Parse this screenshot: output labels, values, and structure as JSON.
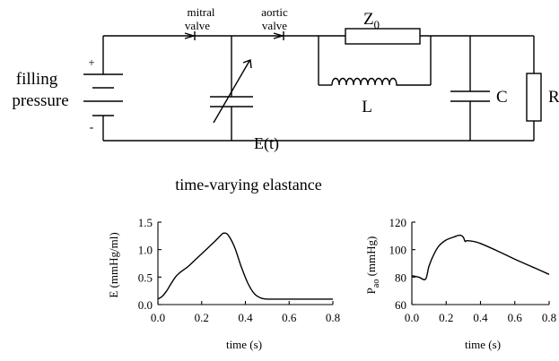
{
  "circuit": {
    "source_label_line1": "filling",
    "source_label_line2": "pressure",
    "plus_sign": "+",
    "minus_sign": "-",
    "mitral_line1": "mitral",
    "mitral_line2": "valve",
    "aortic_line1": "aortic",
    "aortic_line2": "valve",
    "elastance_label": "E(t)",
    "z0_main": "Z",
    "z0_sub": "0",
    "inductor_label": "L",
    "capacitor_label": "C",
    "resistor_label": "R"
  },
  "chart_data": [
    {
      "type": "line",
      "title": "time-varying elastance",
      "xlabel": "time (s)",
      "ylabel": "E (mmHg/ml)",
      "xlim": [
        0.0,
        0.8
      ],
      "ylim": [
        0.0,
        1.5
      ],
      "xticks": [
        "0.0",
        "0.2",
        "0.4",
        "0.6",
        "0.8"
      ],
      "yticks": [
        "0.0",
        "0.5",
        "1.0",
        "1.5"
      ],
      "x": [
        0.0,
        0.02,
        0.04,
        0.06,
        0.08,
        0.1,
        0.14,
        0.18,
        0.22,
        0.26,
        0.29,
        0.3,
        0.32,
        0.35,
        0.38,
        0.41,
        0.44,
        0.47,
        0.5,
        0.55,
        0.6,
        0.7,
        0.8
      ],
      "y": [
        0.1,
        0.15,
        0.25,
        0.38,
        0.5,
        0.58,
        0.7,
        0.85,
        1.0,
        1.15,
        1.27,
        1.3,
        1.27,
        1.05,
        0.7,
        0.4,
        0.2,
        0.12,
        0.1,
        0.1,
        0.1,
        0.1,
        0.1
      ]
    },
    {
      "type": "line",
      "title": "",
      "xlabel": "time (s)",
      "ylabel_main": "P",
      "ylabel_sub": "ao",
      "ylabel_unit": "(mmHg)",
      "xlim": [
        0.0,
        0.8
      ],
      "ylim": [
        60,
        120
      ],
      "xticks": [
        "0.0",
        "0.2",
        "0.4",
        "0.6",
        "0.8"
      ],
      "yticks": [
        "60",
        "80",
        "100",
        "120"
      ],
      "x": [
        0.0,
        0.04,
        0.08,
        0.1,
        0.13,
        0.16,
        0.2,
        0.24,
        0.28,
        0.3,
        0.31,
        0.32,
        0.36,
        0.4,
        0.5,
        0.6,
        0.7,
        0.8
      ],
      "y": [
        81,
        80,
        78.5,
        88,
        97,
        103,
        107,
        109,
        110.5,
        109,
        106,
        106.5,
        106,
        104.5,
        99,
        93,
        87.5,
        82
      ]
    }
  ]
}
